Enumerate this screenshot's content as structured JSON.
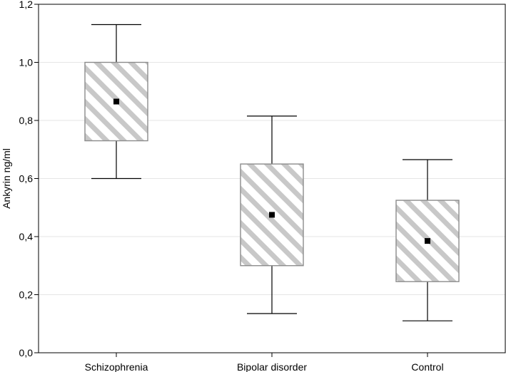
{
  "chart_data": {
    "type": "box",
    "title": "",
    "xlabel": "",
    "ylabel": "Ankyrin ng/ml",
    "ylim": [
      0.0,
      1.2
    ],
    "yticks": [
      "0,0",
      "0,2",
      "0,4",
      "0,6",
      "0,8",
      "1,0",
      "1,2"
    ],
    "ytick_values": [
      0.0,
      0.2,
      0.4,
      0.6,
      0.8,
      1.0,
      1.2
    ],
    "grid": true,
    "categories": [
      "Schizophrenia",
      "Bipolar disorder",
      "Control"
    ],
    "boxes": [
      {
        "category": "Schizophrenia",
        "whisker_low": 0.6,
        "q1": 0.73,
        "center": 0.865,
        "q3": 1.0,
        "whisker_high": 1.13
      },
      {
        "category": "Bipolar disorder",
        "whisker_low": 0.135,
        "q1": 0.3,
        "center": 0.475,
        "q3": 0.65,
        "whisker_high": 0.815
      },
      {
        "category": "Control",
        "whisker_low": 0.11,
        "q1": 0.245,
        "center": 0.385,
        "q3": 0.525,
        "whisker_high": 0.665
      }
    ],
    "colors": {
      "box_fill": "#ffffff",
      "box_hatch": "#c8c8c8",
      "box_edge": "#8c8c8c",
      "marker": "#000000",
      "axis": "#000000",
      "grid": "#e6e6e6"
    }
  }
}
